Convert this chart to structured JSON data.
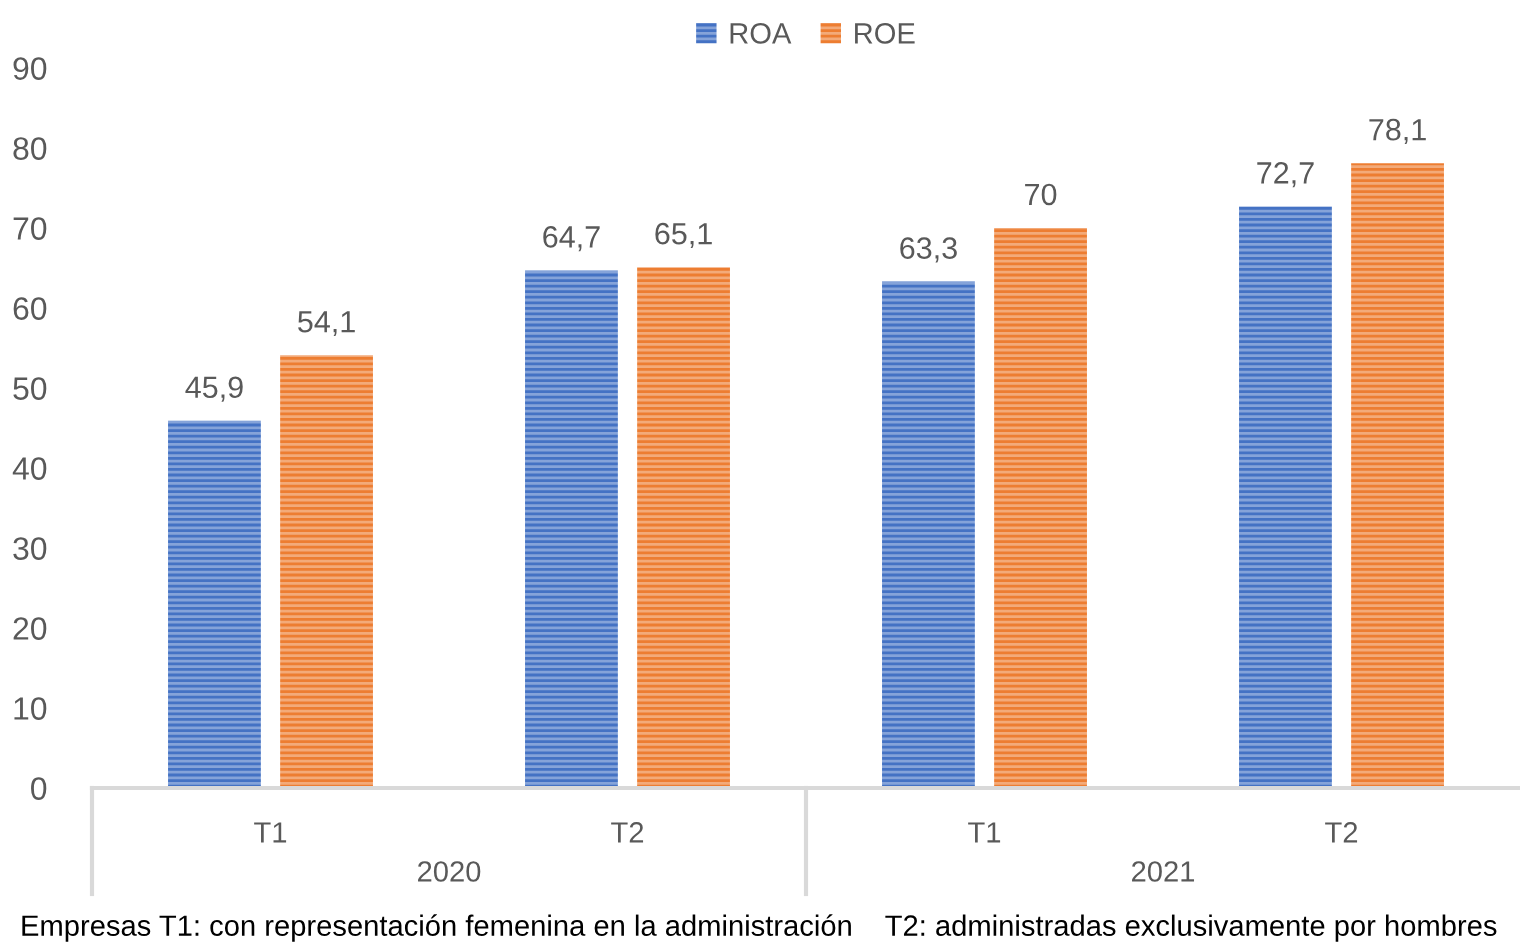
{
  "chart_data": {
    "type": "bar",
    "categories": [
      "T1",
      "T2",
      "T1",
      "T2"
    ],
    "series": [
      {
        "name": "ROA",
        "color": "#4472c4",
        "values": [
          45.9,
          64.7,
          63.3,
          72.7
        ],
        "value_labels": [
          "45,9",
          "64,7",
          "63,3",
          "72,7"
        ]
      },
      {
        "name": "ROE",
        "color": "#ed7d31",
        "values": [
          54.1,
          65.1,
          70,
          78.1
        ],
        "value_labels": [
          "54,1",
          "65,1",
          "70",
          "78,1"
        ]
      }
    ],
    "ylim": [
      0,
      90
    ],
    "yticks": [
      0,
      10,
      20,
      30,
      40,
      50,
      60,
      70,
      80,
      90
    ],
    "grid": false,
    "legend": "top",
    "annotations": [
      "2020",
      "2021",
      "Empresas T1: con representación femenina en la administración    T2: administradas exclusivamente por hombres"
    ]
  }
}
